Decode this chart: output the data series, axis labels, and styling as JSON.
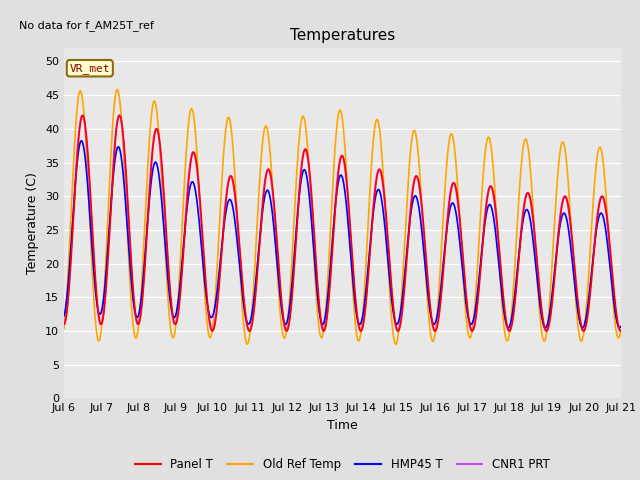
{
  "title": "Temperatures",
  "xlabel": "Time",
  "ylabel": "Temperature (C)",
  "annotation_text": "No data for f_AM25T_ref",
  "annotation_box_text": "VR_met",
  "ylim": [
    0,
    52
  ],
  "yticks": [
    0,
    5,
    10,
    15,
    20,
    25,
    30,
    35,
    40,
    45,
    50
  ],
  "x_tick_labels": [
    "Jul 6",
    "Jul 7",
    "Jul 8",
    "Jul 9",
    "Jul 10",
    "Jul 11",
    "Jul 12",
    "Jul 13",
    "Jul 14",
    "Jul 15",
    "Jul 16",
    "Jul 17",
    "Jul 18",
    "Jul 19",
    "Jul 20",
    "Jul 21"
  ],
  "background_color": "#e0e0e0",
  "plot_bg_color": "#e8e8e8",
  "grid_color": "#ffffff",
  "series": [
    {
      "label": "Panel T",
      "color": "#ff0000",
      "lw": 1.2
    },
    {
      "label": "Old Ref Temp",
      "color": "#ffa500",
      "lw": 1.2
    },
    {
      "label": "HMP45 T",
      "color": "#0000ff",
      "lw": 1.2
    },
    {
      "label": "CNR1 PRT",
      "color": "#cc44ff",
      "lw": 1.2
    }
  ],
  "title_fontsize": 11,
  "label_fontsize": 9,
  "tick_fontsize": 8
}
